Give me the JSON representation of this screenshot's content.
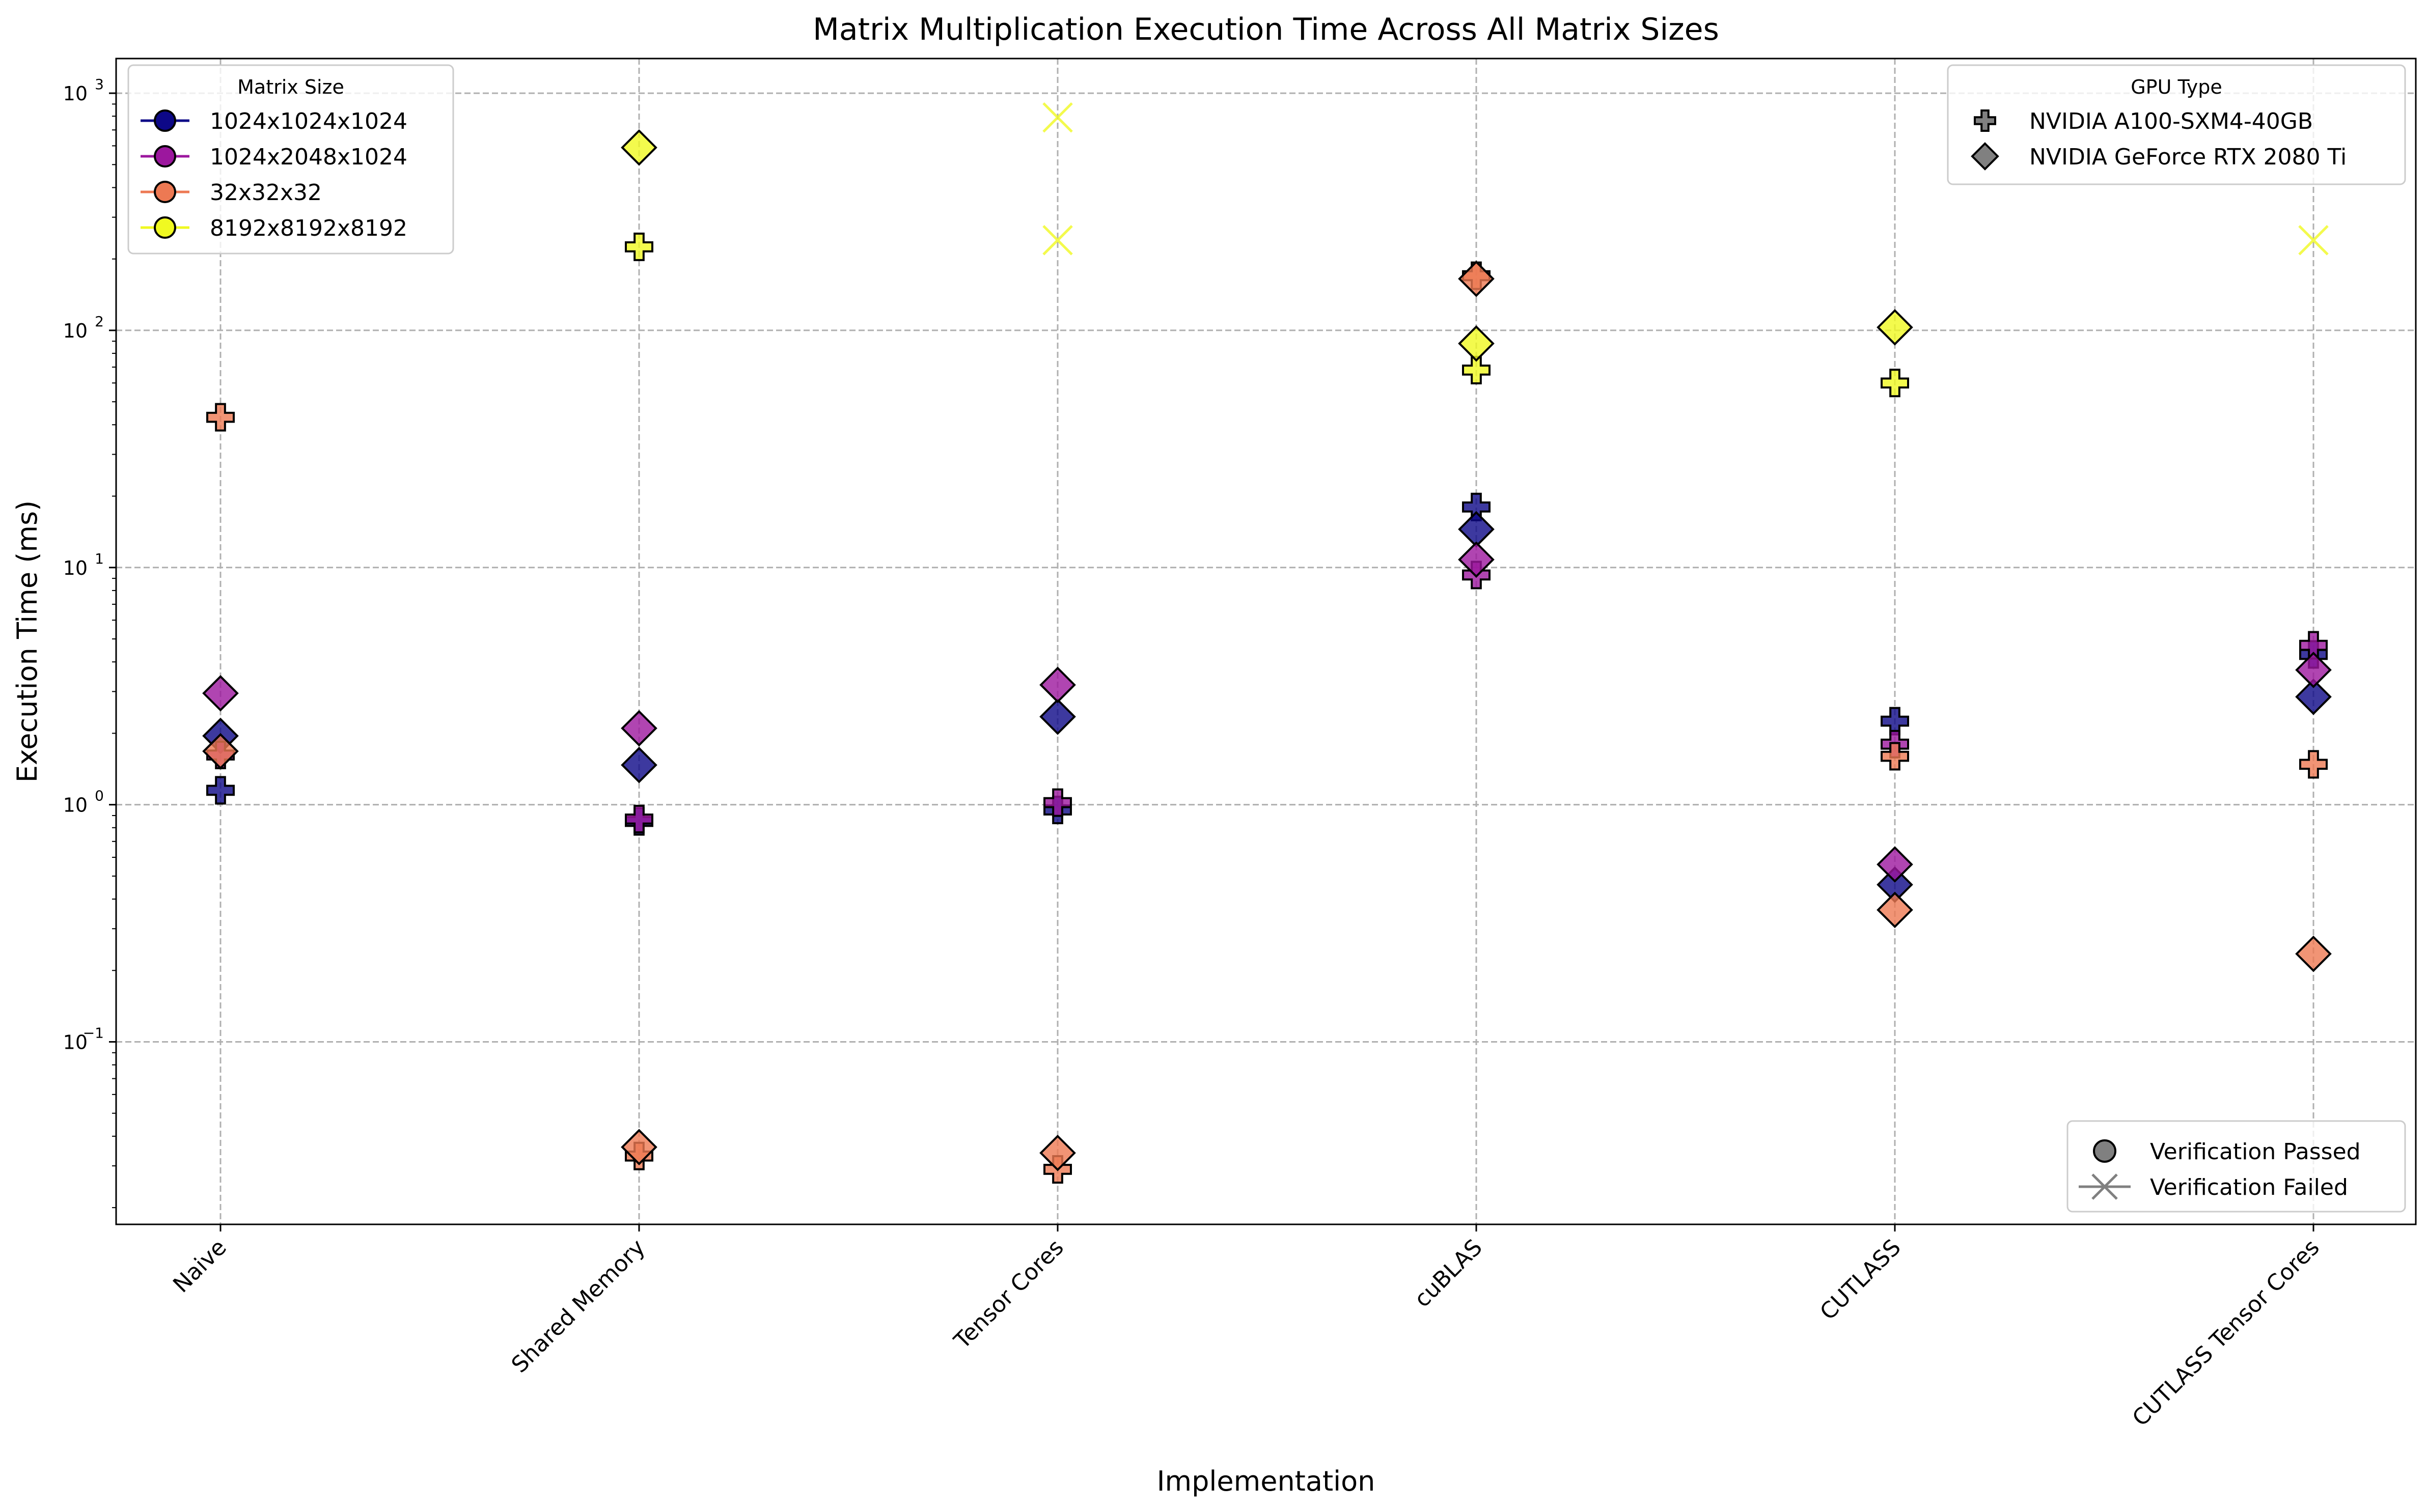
{
  "chart_data": {
    "type": "scatter",
    "title": "Matrix Multiplication Execution Time Across All Matrix Sizes",
    "xlabel": "Implementation",
    "ylabel": "Execution Time (ms)",
    "y_scale": "log",
    "ylim": [
      0.017,
      1400
    ],
    "grid": true,
    "categories": [
      "Naive",
      "Shared Memory",
      "Tensor Cores",
      "cuBLAS",
      "CUTLASS",
      "CUTLASS Tensor Cores"
    ],
    "y_ticks": [
      {
        "value": 0.1,
        "base": "10",
        "exp": "−1"
      },
      {
        "value": 1,
        "base": "10",
        "exp": "0"
      },
      {
        "value": 10,
        "base": "10",
        "exp": "1"
      },
      {
        "value": 100,
        "base": "10",
        "exp": "2"
      },
      {
        "value": 1000,
        "base": "10",
        "exp": "3"
      }
    ],
    "series": [
      {
        "name": "1024x1024x1024",
        "color": "#0d0887",
        "points": [
          {
            "category": "Naive",
            "gpu": "NVIDIA A100-SXM4-40GB",
            "passed": true,
            "value": 1.15
          },
          {
            "category": "Naive",
            "gpu": "NVIDIA GeForce RTX 2080 Ti",
            "passed": true,
            "value": 1.95
          },
          {
            "category": "Shared Memory",
            "gpu": "NVIDIA A100-SXM4-40GB",
            "passed": true,
            "value": 0.85
          },
          {
            "category": "Shared Memory",
            "gpu": "NVIDIA GeForce RTX 2080 Ti",
            "passed": true,
            "value": 1.47
          },
          {
            "category": "Tensor Cores",
            "gpu": "NVIDIA A100-SXM4-40GB",
            "passed": true,
            "value": 0.95
          },
          {
            "category": "Tensor Cores",
            "gpu": "NVIDIA GeForce RTX 2080 Ti",
            "passed": true,
            "value": 2.35
          },
          {
            "category": "cuBLAS",
            "gpu": "NVIDIA A100-SXM4-40GB",
            "passed": true,
            "value": 18
          },
          {
            "category": "cuBLAS",
            "gpu": "NVIDIA GeForce RTX 2080 Ti",
            "passed": true,
            "value": 14.5
          },
          {
            "category": "CUTLASS",
            "gpu": "NVIDIA A100-SXM4-40GB",
            "passed": true,
            "value": 2.25
          },
          {
            "category": "CUTLASS",
            "gpu": "NVIDIA GeForce RTX 2080 Ti",
            "passed": true,
            "value": 0.46
          },
          {
            "category": "CUTLASS Tensor Cores",
            "gpu": "NVIDIA A100-SXM4-40GB",
            "passed": true,
            "value": 4.3
          },
          {
            "category": "CUTLASS Tensor Cores",
            "gpu": "NVIDIA GeForce RTX 2080 Ti",
            "passed": true,
            "value": 2.85
          }
        ]
      },
      {
        "name": "1024x2048x1024",
        "color": "#9c179e",
        "points": [
          {
            "category": "Naive",
            "gpu": "NVIDIA A100-SXM4-40GB",
            "passed": true,
            "value": 1.62
          },
          {
            "category": "Naive",
            "gpu": "NVIDIA GeForce RTX 2080 Ti",
            "passed": true,
            "value": 2.95
          },
          {
            "category": "Shared Memory",
            "gpu": "NVIDIA A100-SXM4-40GB",
            "passed": true,
            "value": 0.87
          },
          {
            "category": "Shared Memory",
            "gpu": "NVIDIA GeForce RTX 2080 Ti",
            "passed": true,
            "value": 2.1
          },
          {
            "category": "Tensor Cores",
            "gpu": "NVIDIA A100-SXM4-40GB",
            "passed": true,
            "value": 1.02
          },
          {
            "category": "Tensor Cores",
            "gpu": "NVIDIA GeForce RTX 2080 Ti",
            "passed": true,
            "value": 3.2
          },
          {
            "category": "cuBLAS",
            "gpu": "NVIDIA A100-SXM4-40GB",
            "passed": true,
            "value": 9.3
          },
          {
            "category": "cuBLAS",
            "gpu": "NVIDIA GeForce RTX 2080 Ti",
            "passed": true,
            "value": 10.8
          },
          {
            "category": "CUTLASS",
            "gpu": "NVIDIA A100-SXM4-40GB",
            "passed": true,
            "value": 1.8
          },
          {
            "category": "CUTLASS",
            "gpu": "NVIDIA GeForce RTX 2080 Ti",
            "passed": true,
            "value": 0.56
          },
          {
            "category": "CUTLASS Tensor Cores",
            "gpu": "NVIDIA A100-SXM4-40GB",
            "passed": true,
            "value": 4.7
          },
          {
            "category": "CUTLASS Tensor Cores",
            "gpu": "NVIDIA GeForce RTX 2080 Ti",
            "passed": true,
            "value": 3.7
          }
        ]
      },
      {
        "name": "32x32x32",
        "color": "#ed7953",
        "points": [
          {
            "category": "Naive",
            "gpu": "NVIDIA A100-SXM4-40GB",
            "passed": true,
            "value": 43
          },
          {
            "category": "Naive",
            "gpu": "NVIDIA GeForce RTX 2080 Ti",
            "passed": true,
            "value": 1.68
          },
          {
            "category": "Shared Memory",
            "gpu": "NVIDIA A100-SXM4-40GB",
            "passed": true,
            "value": 0.033
          },
          {
            "category": "Shared Memory",
            "gpu": "NVIDIA GeForce RTX 2080 Ti",
            "passed": true,
            "value": 0.036
          },
          {
            "category": "Tensor Cores",
            "gpu": "NVIDIA A100-SXM4-40GB",
            "passed": true,
            "value": 0.029
          },
          {
            "category": "Tensor Cores",
            "gpu": "NVIDIA GeForce RTX 2080 Ti",
            "passed": true,
            "value": 0.034
          },
          {
            "category": "cuBLAS",
            "gpu": "NVIDIA A100-SXM4-40GB",
            "passed": true,
            "value": 170
          },
          {
            "category": "cuBLAS",
            "gpu": "NVIDIA GeForce RTX 2080 Ti",
            "passed": true,
            "value": 165
          },
          {
            "category": "CUTLASS",
            "gpu": "NVIDIA A100-SXM4-40GB",
            "passed": true,
            "value": 1.6
          },
          {
            "category": "CUTLASS",
            "gpu": "NVIDIA GeForce RTX 2080 Ti",
            "passed": true,
            "value": 0.36
          },
          {
            "category": "CUTLASS Tensor Cores",
            "gpu": "NVIDIA A100-SXM4-40GB",
            "passed": true,
            "value": 1.48
          },
          {
            "category": "CUTLASS Tensor Cores",
            "gpu": "NVIDIA GeForce RTX 2080 Ti",
            "passed": true,
            "value": 0.235
          }
        ]
      },
      {
        "name": "8192x8192x8192",
        "color": "#f0f921",
        "points": [
          {
            "category": "Shared Memory",
            "gpu": "NVIDIA A100-SXM4-40GB",
            "passed": true,
            "value": 225
          },
          {
            "category": "Shared Memory",
            "gpu": "NVIDIA GeForce RTX 2080 Ti",
            "passed": true,
            "value": 590
          },
          {
            "category": "Tensor Cores",
            "gpu": "NVIDIA A100-SXM4-40GB",
            "passed": false,
            "value": 240
          },
          {
            "category": "Tensor Cores",
            "gpu": "NVIDIA GeForce RTX 2080 Ti",
            "passed": false,
            "value": 790
          },
          {
            "category": "cuBLAS",
            "gpu": "NVIDIA A100-SXM4-40GB",
            "passed": true,
            "value": 68
          },
          {
            "category": "cuBLAS",
            "gpu": "NVIDIA GeForce RTX 2080 Ti",
            "passed": true,
            "value": 88
          },
          {
            "category": "CUTLASS",
            "gpu": "NVIDIA A100-SXM4-40GB",
            "passed": true,
            "value": 60
          },
          {
            "category": "CUTLASS",
            "gpu": "NVIDIA GeForce RTX 2080 Ti",
            "passed": true,
            "value": 103
          },
          {
            "category": "CUTLASS Tensor Cores",
            "gpu": "NVIDIA A100-SXM4-40GB",
            "passed": false,
            "value": 240
          }
        ]
      }
    ],
    "legends": {
      "size": {
        "title": "Matrix Size",
        "placement": "top-left"
      },
      "gpu": {
        "title": "GPU Type",
        "placement": "top-right",
        "entries": [
          {
            "label": "NVIDIA A100-SXM4-40GB",
            "marker": "plus"
          },
          {
            "label": "NVIDIA GeForce RTX 2080 Ti",
            "marker": "diamond"
          }
        ]
      },
      "verification": {
        "placement": "bottom-right",
        "entries": [
          {
            "label": "Verification Passed",
            "marker": "circle"
          },
          {
            "label": "Verification Failed",
            "marker": "x"
          }
        ]
      }
    },
    "marker_style": {
      "edge": "#000000",
      "neutral": "#808080",
      "alpha": 0.8
    }
  }
}
